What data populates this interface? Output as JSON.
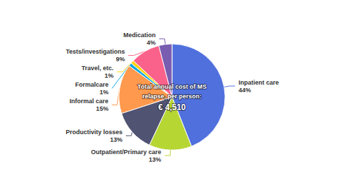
{
  "chart_data": {
    "type": "pie",
    "categories": [
      "Inpatient care",
      "Outpatient/Primary care",
      "Productivity losses",
      "Informal care",
      "Formalcare",
      "Travel, etc.",
      "Tests/investigations",
      "Medication"
    ],
    "values": [
      44,
      13,
      13,
      15,
      1,
      1,
      9,
      4
    ],
    "value_labels": [
      "44%",
      "13%",
      "13%",
      "15%",
      "1%",
      "1%",
      "9%",
      "4%"
    ],
    "data_labels": true,
    "annotations": [
      "Total annual cost of MS",
      "relapse, per person:",
      "€ 4,510"
    ]
  }
}
